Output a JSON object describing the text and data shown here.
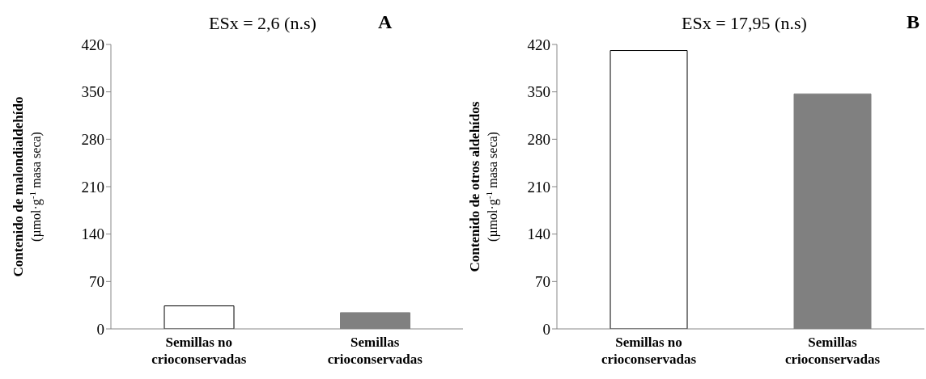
{
  "chart_data": [
    {
      "type": "bar",
      "title": "ESx = 2,6 (n.s)",
      "annotations": [
        "A"
      ],
      "ylabel": "Contenido de malondialdehído\n(µmol·g$^{-1}$ masa seca)",
      "categories": [
        "Semillas no crioconservadas",
        "Semillas crioconservadas"
      ],
      "values": [
        34,
        24
      ],
      "colors": [
        "#ffffff",
        "#808080"
      ],
      "ylim": [
        0,
        420
      ],
      "yticks": [
        0,
        70,
        140,
        210,
        280,
        350,
        420
      ],
      "grid": false,
      "legend": false
    },
    {
      "type": "bar",
      "title": "ESx = 17,95 (n.s)",
      "annotations": [
        "B"
      ],
      "ylabel": "Contenido de otros aldehídos\n(µmol·g$^{-1}$ masa seca)",
      "categories": [
        "Semillas no crioconservadas",
        "Semillas crioconservadas"
      ],
      "values": [
        411,
        347
      ],
      "colors": [
        "#ffffff",
        "#808080"
      ],
      "ylim": [
        0,
        420
      ],
      "yticks": [
        0,
        70,
        140,
        210,
        280,
        350,
        420
      ],
      "grid": false,
      "legend": false
    }
  ]
}
